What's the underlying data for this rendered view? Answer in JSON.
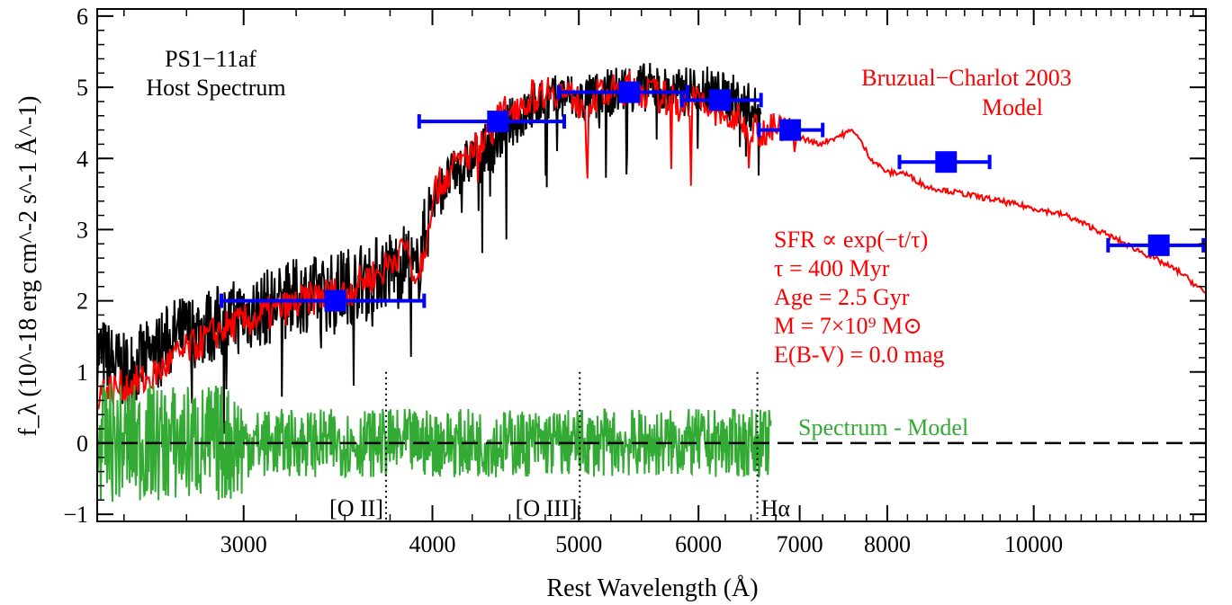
{
  "chart_data": {
    "type": "line",
    "title": "",
    "xlabel": "Rest Wavelength (Å)",
    "ylabel": "f_λ (10^-18 erg cm^-2 s^-1 Å^-1)",
    "x_scale": "log",
    "xlim": [
      2400,
      13000
    ],
    "ylim": [
      -1.1,
      6.1
    ],
    "x_ticks": [
      3000,
      4000,
      5000,
      6000,
      7000,
      8000,
      10000
    ],
    "x_tick_labels": [
      "3000",
      "4000",
      "5000",
      "6000",
      "7000",
      "8000",
      "10000"
    ],
    "y_ticks": [
      -1,
      0,
      1,
      2,
      3,
      4,
      5,
      6
    ],
    "y_tick_labels": [
      "−1",
      "0",
      "1",
      "2",
      "3",
      "4",
      "5",
      "6"
    ],
    "grid": false,
    "colors": {
      "spectrum": "#000000",
      "model": "#ff0000",
      "photometry": "#0000ff",
      "residual": "#33aa33",
      "zero_line": "#000000"
    },
    "annotations": {
      "object_line1": "PS1−11af",
      "object_line2": "Host Spectrum",
      "model_line1": "Bruzual−Charlot 2003",
      "model_line2": "Model",
      "params": [
        "SFR ∝ exp(−t/τ)",
        "τ = 400 Myr",
        "Age = 2.5 Gyr",
        "M = 7×10⁹ M⊙",
        "E(B-V) = 0.0 mag"
      ],
      "residual_label": "Spectrum - Model"
    },
    "emission_lines": [
      {
        "label": "[O II]",
        "wavelength": 3727
      },
      {
        "label": "[O III]",
        "wavelength": 5007
      },
      {
        "label": "Hα",
        "wavelength": 6563
      }
    ],
    "series": [
      {
        "name": "",
        "kind": "spectrum",
        "x": [
          2400,
          2500,
          2600,
          2700,
          2800,
          2900,
          3000,
          3100,
          3200,
          3300,
          3400,
          3500,
          3600,
          3700,
          3800,
          3850,
          3900,
          3950,
          4000,
          4100,
          4200,
          4300,
          4400,
          4500,
          4600,
          4700,
          4800,
          4900,
          5000,
          5200,
          5400,
          5600,
          5800,
          6000,
          6200,
          6400,
          6600
        ],
        "y": [
          1.3,
          1.0,
          1.2,
          1.5,
          1.6,
          1.7,
          1.8,
          1.9,
          2.0,
          2.1,
          2.1,
          2.2,
          2.3,
          2.4,
          2.5,
          2.6,
          2.3,
          2.9,
          3.4,
          3.7,
          3.9,
          4.1,
          4.2,
          4.5,
          4.6,
          4.8,
          4.8,
          4.9,
          4.8,
          4.9,
          5.0,
          5.0,
          4.9,
          5.0,
          4.9,
          4.8,
          4.6
        ]
      },
      {
        "name": "",
        "kind": "model",
        "x": [
          2400,
          2500,
          2600,
          2700,
          2800,
          2900,
          3000,
          3100,
          3200,
          3300,
          3400,
          3500,
          3600,
          3700,
          3800,
          3850,
          3900,
          3950,
          4000,
          4100,
          4200,
          4300,
          4400,
          4500,
          4600,
          4700,
          4800,
          4900,
          5000,
          5200,
          5400,
          5600,
          5800,
          6000,
          6200,
          6400,
          6600,
          6800,
          7000,
          7200,
          7400,
          7600,
          7800,
          8000,
          8200,
          8500,
          9000,
          9500,
          10000,
          10500,
          11000,
          11500,
          12000,
          12500,
          13000
        ],
        "y": [
          0.7,
          0.8,
          0.9,
          1.2,
          1.4,
          1.6,
          1.7,
          1.8,
          1.9,
          2.0,
          2.1,
          2.1,
          2.3,
          2.4,
          2.7,
          2.8,
          2.3,
          2.7,
          3.5,
          3.8,
          4.0,
          4.2,
          4.5,
          4.7,
          4.8,
          4.9,
          5.0,
          4.9,
          4.8,
          4.9,
          5.0,
          4.9,
          4.8,
          4.8,
          4.6,
          4.5,
          4.4,
          4.4,
          4.3,
          4.2,
          4.3,
          4.4,
          4.0,
          3.8,
          3.8,
          3.6,
          3.5,
          3.4,
          3.3,
          3.2,
          3.0,
          2.8,
          2.6,
          2.4,
          2.1
        ]
      },
      {
        "name": "",
        "kind": "photometry",
        "points": [
          {
            "x": 3450,
            "y": 2.0,
            "xerr_low": 2900,
            "xerr_high": 3950
          },
          {
            "x": 4420,
            "y": 4.52,
            "xerr_low": 3920,
            "xerr_high": 4890
          },
          {
            "x": 5400,
            "y": 4.93,
            "xerr_low": 4850,
            "xerr_high": 5900
          },
          {
            "x": 6200,
            "y": 4.82,
            "xerr_low": 5850,
            "xerr_high": 6600
          },
          {
            "x": 6900,
            "y": 4.4,
            "xerr_low": 6580,
            "xerr_high": 7250
          },
          {
            "x": 8750,
            "y": 3.95,
            "xerr_low": 8150,
            "xerr_high": 9350
          },
          {
            "x": 12100,
            "y": 2.78,
            "xerr_low": 11200,
            "xerr_high": 12950
          }
        ]
      },
      {
        "name": "Spectrum - Model",
        "kind": "residual",
        "x_range": [
          2400,
          6700
        ],
        "noise_amplitude": 0.6
      }
    ]
  }
}
